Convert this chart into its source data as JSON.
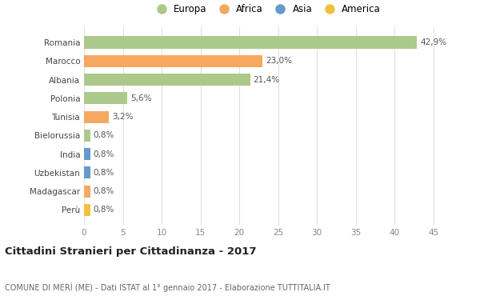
{
  "categories": [
    "Perù",
    "Madagascar",
    "Uzbekistan",
    "India",
    "Bielorussia",
    "Tunisia",
    "Polonia",
    "Albania",
    "Marocco",
    "Romania"
  ],
  "values": [
    0.8,
    0.8,
    0.8,
    0.8,
    0.8,
    3.2,
    5.6,
    21.4,
    23.0,
    42.9
  ],
  "colors": [
    "#f0c040",
    "#f5a860",
    "#6699cc",
    "#6699cc",
    "#aac98a",
    "#f5a860",
    "#aac98a",
    "#aac98a",
    "#f5a860",
    "#aac98a"
  ],
  "labels": [
    "0,8%",
    "0,8%",
    "0,8%",
    "0,8%",
    "0,8%",
    "3,2%",
    "5,6%",
    "21,4%",
    "23,0%",
    "42,9%"
  ],
  "legend": [
    {
      "label": "Europa",
      "color": "#aac98a"
    },
    {
      "label": "Africa",
      "color": "#f5a860"
    },
    {
      "label": "Asia",
      "color": "#6699cc"
    },
    {
      "label": "America",
      "color": "#f0c040"
    }
  ],
  "xlim": [
    0,
    47
  ],
  "xticks": [
    0,
    5,
    10,
    15,
    20,
    25,
    30,
    35,
    40,
    45
  ],
  "title": "Cittadini Stranieri per Cittadinanza - 2017",
  "subtitle": "COMUNE DI MERÌ (ME) - Dati ISTAT al 1° gennaio 2017 - Elaborazione TUTTITALIA.IT",
  "background_color": "#ffffff",
  "grid_color": "#e0e0e0",
  "bar_height": 0.65
}
